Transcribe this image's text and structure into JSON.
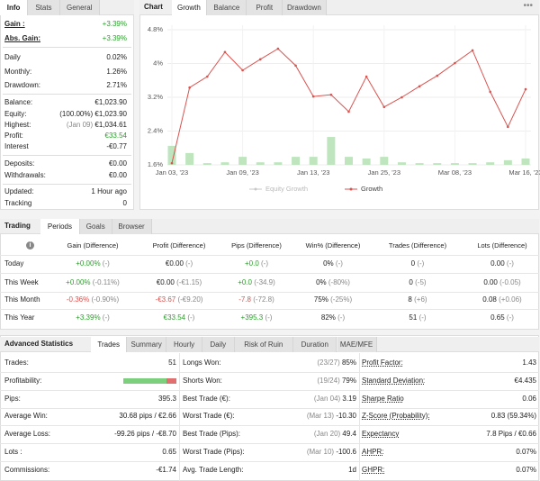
{
  "info": {
    "tabs": [
      "Info",
      "Stats",
      "General"
    ],
    "active": 0,
    "groups": [
      [
        {
          "label": "Gain :",
          "value": "+3.39%",
          "color": "#2e9e2e"
        },
        {
          "label": "Abs. Gain:",
          "value": "+3.39%",
          "color": "#2e9e2e"
        }
      ],
      [
        {
          "label": "Daily",
          "value": "0.02%"
        },
        {
          "label": "Monthly:",
          "value": "1.26%"
        },
        {
          "label": "Drawdown:",
          "value": "2.71%"
        }
      ],
      [
        {
          "label": "Balance:",
          "value": "€1,023.90"
        },
        {
          "label": "Equity:",
          "note": "(100.00%)",
          "value": "€1,023.90"
        },
        {
          "label": "Highest:",
          "note": "(Jan 09)",
          "value": "€1,034.61"
        },
        {
          "label": "Profit:",
          "value": "€33.54",
          "color": "#2e9e2e"
        },
        {
          "label": "Interest",
          "value": "-€0.77"
        }
      ],
      [
        {
          "label": "Deposits:",
          "value": "€0.00"
        },
        {
          "label": "Withdrawals:",
          "value": "€0.00"
        }
      ],
      [
        {
          "label": "Updated:",
          "value": "1 Hour ago"
        },
        {
          "label": "Tracking",
          "value": "0"
        }
      ]
    ]
  },
  "chart": {
    "type": "line",
    "label": "Chart",
    "tabs": [
      "Growth",
      "Balance",
      "Profit",
      "Drawdown"
    ],
    "active": 0,
    "categories": [
      "Jan 03, '23",
      null,
      null,
      null,
      "Jan 09, '23",
      null,
      null,
      null,
      "Jan 13, '23",
      null,
      null,
      null,
      "Jan 25, '23",
      null,
      null,
      null,
      "Mar 08, '23",
      null,
      null,
      null,
      "Mar 16, '23"
    ],
    "ylim": [
      1.6,
      4.8
    ],
    "yticks": [
      {
        "value": 4.8,
        "label": "4.8%"
      },
      {
        "value": 4,
        "label": "4%"
      },
      {
        "value": 3.2,
        "label": "3.2%"
      },
      {
        "value": 2.4,
        "label": "2.4%"
      },
      {
        "value": 1.6,
        "label": "1.6%"
      }
    ],
    "hidden_series": {
      "name": "Equity Growth",
      "color": "#c8c8c8"
    },
    "series": [
      {
        "name": "Growth",
        "color": "#d9534f",
        "values": [
          1.64,
          3.43,
          3.69,
          4.27,
          3.84,
          4.1,
          4.35,
          3.95,
          3.22,
          3.26,
          2.86,
          3.69,
          2.97,
          3.2,
          3.46,
          3.71,
          4.01,
          4.31,
          3.33,
          2.5,
          3.39
        ]
      }
    ],
    "bars": {
      "color": "#bfe5bf",
      "values": [
        0.45,
        0.28,
        0.04,
        0.06,
        0.19,
        0.06,
        0.06,
        0.19,
        0.19,
        0.66,
        0.19,
        0.15,
        0.19,
        0.06,
        0.04,
        0.04,
        0.04,
        0.04,
        0.06,
        0.11,
        0.15
      ]
    }
  },
  "trading": {
    "label": "Trading",
    "tabs": [
      "Periods",
      "Goals",
      "Browser"
    ],
    "active": 0,
    "columns": [
      "Gain (Difference)",
      "Profit (Difference)",
      "Pips (Difference)",
      "Win% (Difference)",
      "Trades (Difference)",
      "Lots (Difference)"
    ],
    "rows": [
      {
        "label": "Today",
        "cells": [
          [
            "+0.00%",
            "(-)"
          ],
          [
            "€0.00",
            "(-)"
          ],
          [
            "+0.0",
            "(-)"
          ],
          [
            "0%",
            "(-)"
          ],
          [
            "0",
            "(-)"
          ],
          [
            "0.00",
            "(-)"
          ]
        ]
      },
      {
        "label": "This Week",
        "cells": [
          [
            "+0.00%",
            "(-0.11%)"
          ],
          [
            "€0.00",
            "(-€1.15)"
          ],
          [
            "+0.0",
            "(-34.9)"
          ],
          [
            "0%",
            "(-80%)"
          ],
          [
            "0",
            "(-5)"
          ],
          [
            "0.00",
            "(-0.05)"
          ]
        ]
      },
      {
        "label": "This Month",
        "cells": [
          [
            "-0.36%",
            "(-0.90%)"
          ],
          [
            "-€3.67",
            "(-€9.20)"
          ],
          [
            "-7.8",
            "(-72.8)"
          ],
          [
            "75%",
            "(-25%)"
          ],
          [
            "8",
            "(+6)"
          ],
          [
            "0.08",
            "(+0.06)"
          ]
        ]
      },
      {
        "label": "This Year",
        "cells": [
          [
            "+3.39%",
            "(-)"
          ],
          [
            "€33.54",
            "(-)"
          ],
          [
            "+395.3",
            "(-)"
          ],
          [
            "82%",
            "(-)"
          ],
          [
            "51",
            "(-)"
          ],
          [
            "0.65",
            "(-)"
          ]
        ]
      }
    ]
  },
  "advanced": {
    "label": "Advanced Statistics",
    "tabs": [
      "Trades",
      "Summary",
      "Hourly",
      "Daily",
      "Risk of Ruin",
      "Duration",
      "MAE/MFE"
    ],
    "active": 0,
    "rows": [
      [
        {
          "label": "Trades:",
          "value": "51"
        },
        {
          "label": "Longs Won:",
          "note": "(23/27)",
          "value": "85%"
        },
        {
          "label": "Profit Factor:",
          "value": "1.43"
        }
      ],
      [
        {
          "label": "Profitability:",
          "percent": 82
        },
        {
          "label": "Shorts Won:",
          "note": "(19/24)",
          "value": "79%"
        },
        {
          "label": "Standard Deviation:",
          "value": "€4.435"
        }
      ],
      [
        {
          "label": "Pips:",
          "value": "395.3"
        },
        {
          "label": "Best Trade (€):",
          "note": "(Jan 04)",
          "value": "3.19"
        },
        {
          "label": "Sharpe Ratio",
          "value": "0.06"
        }
      ],
      [
        {
          "label": "Average Win:",
          "value": "30.68 pips / €2.66"
        },
        {
          "label": "Worst Trade (€):",
          "note": "(Mar 13)",
          "value": "-10.30"
        },
        {
          "label": "Z-Score (Probability):",
          "value": "0.83 (59.34%)"
        }
      ],
      [
        {
          "label": "Average Loss:",
          "value": "-99.26 pips / -€8.70"
        },
        {
          "label": "Best Trade (Pips):",
          "note": "(Jan 20)",
          "value": "49.4"
        },
        {
          "label": "Expectancy",
          "value": "7.8 Pips / €0.66"
        }
      ],
      [
        {
          "label": "Lots :",
          "value": "0.65"
        },
        {
          "label": "Worst Trade (Pips):",
          "note": "(Mar 10)",
          "value": "-100.6"
        },
        {
          "label": "AHPR:",
          "value": "0.07%"
        }
      ],
      [
        {
          "label": "Commissions:",
          "value": "-€1.74"
        },
        {
          "label": "Avg. Trade Length:",
          "value": "1d"
        },
        {
          "label": "GHPR:",
          "value": "0.07%"
        }
      ]
    ]
  }
}
